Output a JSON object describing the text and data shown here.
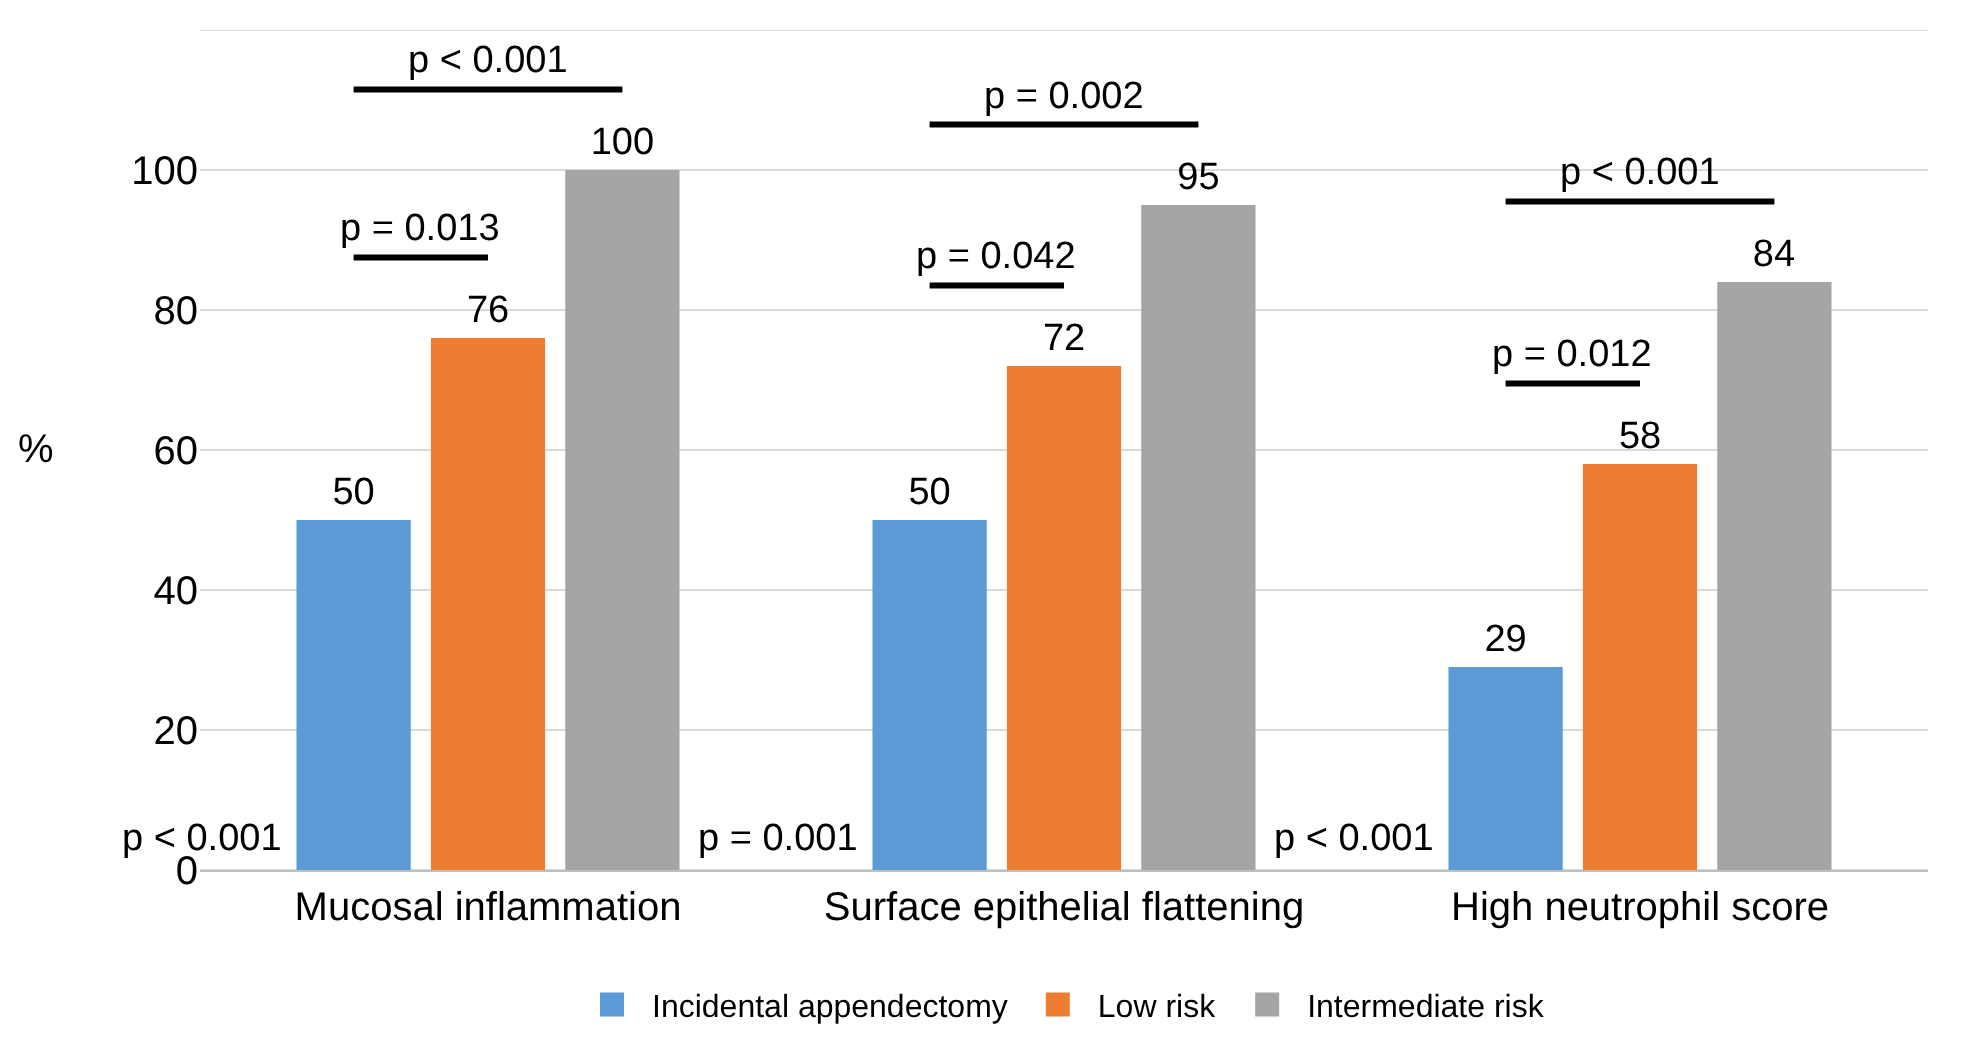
{
  "chart_data": {
    "type": "bar",
    "categories": [
      "Mucosal inflammation",
      "Surface epithelial flattening",
      "High neutrophil score"
    ],
    "series": [
      {
        "name": "Incidental appendectomy",
        "color": "#5b9bd5",
        "values": [
          50,
          50,
          29
        ]
      },
      {
        "name": "Low risk",
        "color": "#ed7d31",
        "values": [
          76,
          72,
          58
        ]
      },
      {
        "name": "Intermediate risk",
        "color": "#a5a5a5",
        "values": [
          100,
          95,
          84
        ]
      }
    ],
    "ylabel": "%",
    "ylim": [
      0,
      120
    ],
    "yticks": [
      0,
      20,
      40,
      60,
      80,
      100,
      {
        "value": 120,
        "label": null
      }
    ],
    "grid": "y",
    "legend": "bottom",
    "data_labels": true,
    "annotations": [
      "p < 0.001",
      "p = 0.013",
      "p < 0.001",
      "p = 0.001",
      "p = 0.042",
      "p = 0.002",
      "p < 0.001",
      "p = 0.012",
      "p < 0.001"
    ]
  }
}
